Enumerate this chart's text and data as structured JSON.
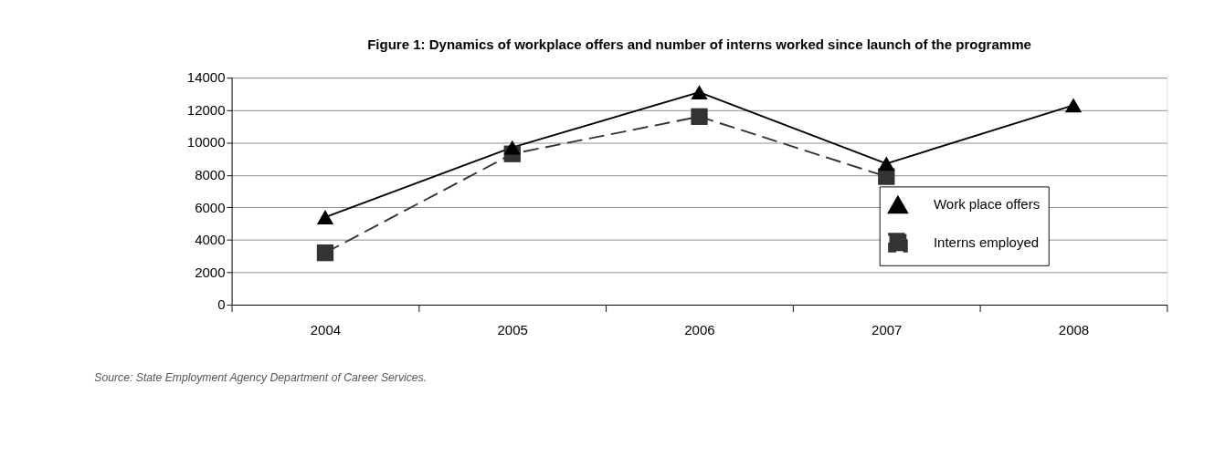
{
  "chart_data": {
    "type": "line",
    "title": "Figure 1: Dynamics of workplace offers and number of interns worked since launch of the programme",
    "categories": [
      "2004",
      "2005",
      "2006",
      "2007",
      "2008"
    ],
    "series": [
      {
        "name": "Work place offers",
        "color": "#000000",
        "values": [
          5400,
          9700,
          13100,
          8700,
          12300
        ],
        "marker": "triangle",
        "line_style": "solid"
      },
      {
        "name": "Interns employed",
        "color": "#333333",
        "values": [
          3200,
          9300,
          11600,
          7900,
          null
        ],
        "marker": "square",
        "line_style": "dashed"
      }
    ],
    "ylim": [
      0,
      14000
    ],
    "yticks": [
      0,
      2000,
      4000,
      6000,
      8000,
      10000,
      12000,
      14000
    ],
    "grid": "y",
    "legend": "right",
    "annotations": [
      "Source: State Employment Agency Department of Career Services."
    ]
  }
}
